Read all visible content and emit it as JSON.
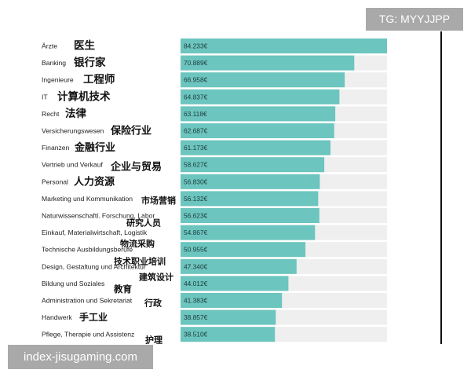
{
  "watermark_top": "TG: MYYJJPP",
  "watermark_bottom": "index-jisugaming.com",
  "chart_data": {
    "type": "bar",
    "orientation": "horizontal",
    "xlim": [
      0,
      84233
    ],
    "bar_color": "#6cc5bf",
    "track_color": "#efefef",
    "categories": [
      {
        "de": "Ärzte",
        "zh": "医生",
        "value": 84233,
        "value_label": "84.233€"
      },
      {
        "de": "Banking",
        "zh": "银行家",
        "value": 70889,
        "value_label": "70.889€"
      },
      {
        "de": "Ingenieure",
        "zh": "工程师",
        "value": 66958,
        "value_label": "66.958€"
      },
      {
        "de": "IT",
        "zh": "计算机技术",
        "value": 64837,
        "value_label": "64.837€"
      },
      {
        "de": "Recht",
        "zh": "法律",
        "value": 63118,
        "value_label": "63.118€"
      },
      {
        "de": "Versicherungswesen",
        "zh": "保险行业",
        "value": 62687,
        "value_label": "62.687€"
      },
      {
        "de": "Finanzen",
        "zh": "金融行业",
        "value": 61173,
        "value_label": "61.173€"
      },
      {
        "de": "Vertrieb und Verkauf",
        "zh": "企业与贸易",
        "value": 58627,
        "value_label": "58.627€"
      },
      {
        "de": "Personal",
        "zh": "人力资源",
        "value": 56830,
        "value_label": "56.830€"
      },
      {
        "de": "Marketing und Kommunikation",
        "zh": "市场营销",
        "value": 56132,
        "value_label": "56.132€"
      },
      {
        "de": "Naturwissenschaftl. Forschung, Labor",
        "zh": "研究人员",
        "value": 56623,
        "value_label": "56.623€"
      },
      {
        "de": "Einkauf, Materialwirtschaft, Logistik",
        "zh": "物流采购",
        "value": 54867,
        "value_label": "54.867€"
      },
      {
        "de": "Technische Ausbildungsberufe",
        "zh": "技术职业培训",
        "value": 50955,
        "value_label": "50.955€"
      },
      {
        "de": "Design, Gestaltung und Architektur",
        "zh": "建筑设计",
        "value": 47340,
        "value_label": "47.340€"
      },
      {
        "de": "Bildung und Soziales",
        "zh": "教育",
        "value": 44012,
        "value_label": "44.012€"
      },
      {
        "de": "Administration und Sekretariat",
        "zh": "行政",
        "value": 41383,
        "value_label": "41.383€"
      },
      {
        "de": "Handwerk",
        "zh": "手工业",
        "value": 38857,
        "value_label": "38.857€"
      },
      {
        "de": "Pflege, Therapie und Assistenz",
        "zh": "护理",
        "value": 38510,
        "value_label": "38.510€"
      }
    ]
  }
}
